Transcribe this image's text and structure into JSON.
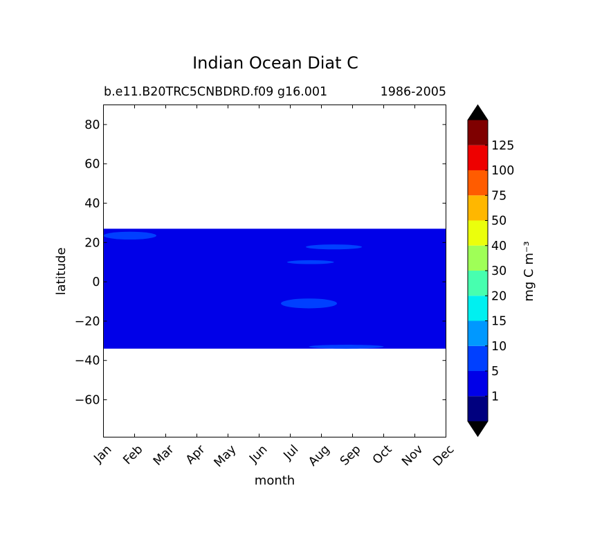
{
  "chart_data": {
    "type": "heatmap",
    "title": "Indian Ocean Diat C",
    "subtitle_left": "b.e11.B20TRC5CNBDRD.f09 g16.001",
    "subtitle_right": "1986-2005",
    "xlabel": "month",
    "ylabel": "latitude",
    "x_categories": [
      "Jan",
      "Feb",
      "Mar",
      "Apr",
      "May",
      "Jun",
      "Jul",
      "Aug",
      "Sep",
      "Oct",
      "Nov",
      "Dec"
    ],
    "xlim": [
      1,
      12
    ],
    "ylim": [
      -79,
      90
    ],
    "y_ticks": [
      80,
      60,
      40,
      20,
      0,
      -20,
      -40,
      -60
    ],
    "y_tick_labels": [
      "80",
      "60",
      "40",
      "20",
      "0",
      "−20",
      "−40",
      "−60"
    ],
    "data_lat_range": [
      -34,
      27
    ],
    "background_value_bin": 1,
    "patches": [
      {
        "value_bin": 2,
        "x_range": [
          1.0,
          2.7
        ],
        "lat_range": [
          21.5,
          25.5
        ]
      },
      {
        "value_bin": 2,
        "x_range": [
          7.5,
          9.3
        ],
        "lat_range": [
          16.5,
          19.0
        ]
      },
      {
        "value_bin": 2,
        "x_range": [
          6.9,
          8.4
        ],
        "lat_range": [
          9.0,
          11.0
        ]
      },
      {
        "value_bin": 2,
        "x_range": [
          6.7,
          8.5
        ],
        "lat_range": [
          -13.5,
          -8.5
        ]
      },
      {
        "value_bin": 2,
        "x_range": [
          7.6,
          10.0
        ],
        "lat_range": [
          -34.0,
          -32.0
        ]
      }
    ],
    "colorbar": {
      "label": "mg C m⁻³",
      "levels": [
        "1",
        "5",
        "10",
        "15",
        "20",
        "30",
        "40",
        "50",
        "75",
        "100",
        "125"
      ],
      "colors": [
        "#00007f",
        "#0000e8",
        "#0040ff",
        "#0098ff",
        "#00f0f0",
        "#47ffaf",
        "#9fff57",
        "#ebff0c",
        "#ffb700",
        "#ff5c00",
        "#ee0000",
        "#7f0000"
      ],
      "under_color": "#000000",
      "over_color": "#000000"
    }
  }
}
